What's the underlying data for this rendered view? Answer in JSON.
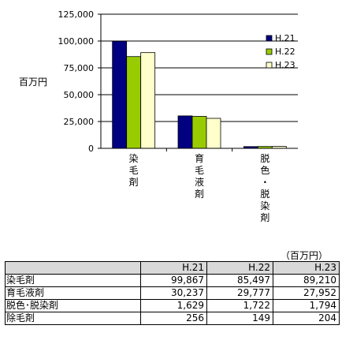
{
  "chart_data": {
    "type": "bar",
    "ylabel": "百万円",
    "ylim": [
      0,
      125000
    ],
    "yticks": [
      "0",
      "25,000",
      "50,000",
      "75,000",
      "100,000",
      "125,000"
    ],
    "ytick_values": [
      0,
      25000,
      50000,
      75000,
      100000,
      125000
    ],
    "grid": true,
    "legend": "right",
    "categories": [
      "染毛剤",
      "育毛液剤",
      "脱色・脱染剤"
    ],
    "category_labels": [
      [
        "染",
        "毛",
        "剤"
      ],
      [
        "育",
        "毛",
        "液",
        "剤"
      ],
      [
        "脱",
        "色",
        "・",
        "脱",
        "染",
        "剤"
      ]
    ],
    "series": [
      {
        "name": "H.21",
        "color": "#000080",
        "values": [
          99867,
          30237,
          1629
        ]
      },
      {
        "name": "H.22",
        "color": "#99cc00",
        "values": [
          85497,
          29777,
          1722
        ]
      },
      {
        "name": "H.23",
        "color": "#ffffcc",
        "values": [
          89210,
          27952,
          1794
        ]
      }
    ]
  },
  "table": {
    "unit": "（百万円）",
    "headers": [
      "H.21",
      "H.22",
      "H.23"
    ],
    "rows": [
      {
        "label": "染毛剤",
        "values": [
          "99,867",
          "85,497",
          "89,210"
        ]
      },
      {
        "label": "育毛液剤",
        "values": [
          "30,237",
          "29,777",
          "27,952"
        ]
      },
      {
        "label": "脱色･脱染剤",
        "values": [
          "1,629",
          "1,722",
          "1,794"
        ]
      },
      {
        "label": "除毛剤",
        "values": [
          "256",
          "149",
          "204"
        ]
      }
    ]
  }
}
